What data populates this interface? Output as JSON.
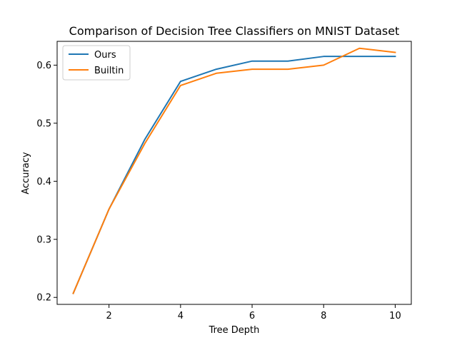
{
  "chart_data": {
    "type": "line",
    "title": "Comparison of Decision Tree Classifiers on MNIST Dataset",
    "xlabel": "Tree Depth",
    "ylabel": "Accuracy",
    "x": [
      1,
      2,
      3,
      4,
      5,
      6,
      7,
      8,
      9,
      10
    ],
    "xlim": [
      0.55,
      10.45
    ],
    "ylim": [
      0.188,
      0.641
    ],
    "xticks": [
      2,
      4,
      6,
      8,
      10
    ],
    "xtick_labels": [
      "2",
      "4",
      "6",
      "8",
      "10"
    ],
    "yticks": [
      0.2,
      0.3,
      0.4,
      0.5,
      0.6
    ],
    "ytick_labels": [
      "0.2",
      "0.3",
      "0.4",
      "0.5",
      "0.6"
    ],
    "grid": false,
    "legend_position": "top-left",
    "series": [
      {
        "name": "Ours",
        "color": "#1f77b4",
        "values": [
          0.207,
          0.352,
          0.472,
          0.572,
          0.593,
          0.607,
          0.607,
          0.615,
          0.615,
          0.615
        ]
      },
      {
        "name": "Builtin",
        "color": "#ff7f0e",
        "values": [
          0.207,
          0.352,
          0.465,
          0.565,
          0.586,
          0.593,
          0.593,
          0.6,
          0.629,
          0.622
        ]
      }
    ]
  }
}
